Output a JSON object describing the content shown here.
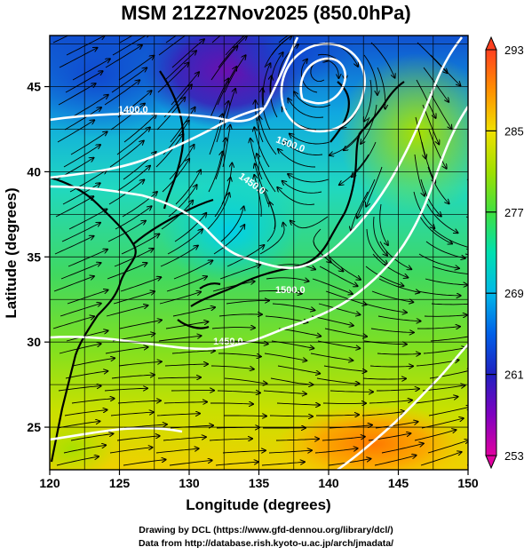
{
  "title": "MSM 21Z27Nov2025 (850.0hPa)",
  "credits": {
    "line1": "Drawing by DCL (https://www.gfd-dennou.org/library/dcl/)",
    "line2": "Data from http://database.rish.kyoto-u.ac.jp/arch/jmadata/"
  },
  "map": {
    "xlabel": "Longitude (degrees)",
    "ylabel": "Latitude  (degrees)",
    "x_ticks": [
      "120",
      "125",
      "130",
      "135",
      "140",
      "145",
      "150"
    ],
    "y_ticks": [
      "25",
      "30",
      "35",
      "40",
      "45"
    ],
    "xlim": [
      120,
      150
    ],
    "ylim": [
      22.5,
      48
    ],
    "contour_labels": [
      "1400.0",
      "1500.0",
      "1450.0",
      "1500.0",
      "1450.0"
    ]
  },
  "colorbar": {
    "ticks": [
      "253",
      "261",
      "269",
      "277",
      "285",
      "293"
    ],
    "range": [
      253,
      293
    ],
    "colors": [
      "#e000a0",
      "#8000c0",
      "#2020c0",
      "#0060e8",
      "#00b8e8",
      "#00e0b0",
      "#40e040",
      "#a0e000",
      "#f0e000",
      "#ff9000",
      "#ff4020"
    ]
  }
}
